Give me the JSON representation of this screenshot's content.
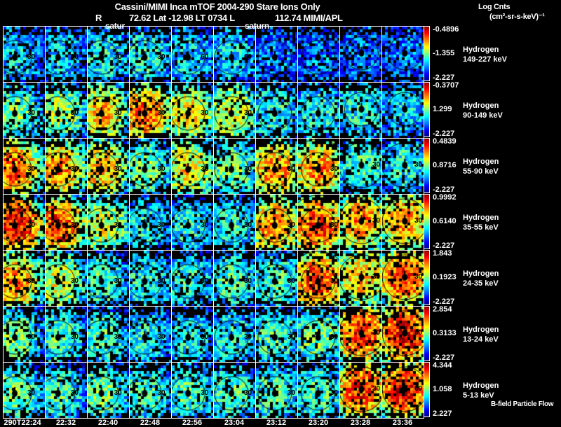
{
  "header": {
    "title": "Cassini/MIMI Inca mTOF  2004-290    Stare    Ions Only",
    "r_label": "R",
    "position": "72.62 Lat -12.98 LT 0734 L",
    "l_value": "112.74  MIMI/APL",
    "saturn_label_1": "satur",
    "saturn_label_2": "saturn"
  },
  "colorbar_title": "Log Cnts",
  "colorbar_units": "(cm²-sr-s-keV)⁻¹",
  "footer_note": "B-field Particle Flow",
  "chart_data": {
    "type": "heatmap",
    "title": "Cassini/MIMI Inca mTOF 2004-290 Stare Ions Only",
    "columns": [
      "290T22:24",
      "22:32",
      "22:40",
      "22:48",
      "22:56",
      "23:04",
      "23:12",
      "23:20",
      "23:28",
      "23:36"
    ],
    "rows": [
      {
        "species": "Hydrogen",
        "energy": "149-227 keV",
        "cmax": "-0.4896",
        "cmid": "-1.355",
        "cmin": "-2.227",
        "level": [
          0.3,
          0.3,
          0.35,
          0.35,
          0.3,
          0.3,
          0.2,
          0.2,
          0.2,
          0.2
        ],
        "rings": [
          "30",
          "30",
          "30",
          "30",
          "60",
          "60",
          "",
          "",
          "",
          ""
        ]
      },
      {
        "species": "Hydrogen",
        "energy": "90-149 keV",
        "cmax": "-0.3707",
        "cmid": "1.299",
        "cmin": "-2.227",
        "level": [
          0.5,
          0.55,
          0.7,
          0.8,
          0.65,
          0.6,
          0.35,
          0.35,
          0.35,
          0.3
        ],
        "rings": [
          "30",
          "30",
          "30",
          "30",
          "30",
          "30",
          "",
          "",
          "",
          ""
        ]
      },
      {
        "species": "Hydrogen",
        "energy": "55-90 keV",
        "cmax": "0.4839",
        "cmid": "0.8716",
        "cmin": "-2.227",
        "level": [
          0.8,
          0.75,
          0.7,
          0.5,
          0.65,
          0.5,
          0.75,
          0.75,
          0.45,
          0.4
        ],
        "rings": [
          "30",
          "30",
          "30",
          "30",
          "30",
          "30",
          "30",
          "30",
          "30",
          "30"
        ]
      },
      {
        "species": "Hydrogen",
        "energy": "35-55 keV",
        "cmax": "0.9992",
        "cmid": "0.6140",
        "cmin": "-2.227",
        "level": [
          0.9,
          0.85,
          0.6,
          0.4,
          0.4,
          0.4,
          0.75,
          0.85,
          0.75,
          0.75
        ],
        "rings": [
          "30",
          "30",
          "30",
          "30",
          "30",
          "30",
          "30",
          "30",
          "30",
          "30"
        ]
      },
      {
        "species": "Hydrogen",
        "energy": "24-35 keV",
        "cmax": "1.843",
        "cmid": "0.1923",
        "cmin": "-2.227",
        "level": [
          0.75,
          0.6,
          0.45,
          0.35,
          0.35,
          0.45,
          0.45,
          0.85,
          0.7,
          0.85
        ],
        "rings": [
          "30",
          "30",
          "30",
          "30",
          "30",
          "30",
          "30",
          "30",
          "30",
          "30"
        ]
      },
      {
        "species": "Hydrogen",
        "energy": "13-24 keV",
        "cmax": "2.854",
        "cmid": "0.3133",
        "cmin": "-2.227",
        "level": [
          0.5,
          0.45,
          0.45,
          0.4,
          0.4,
          0.4,
          0.45,
          0.5,
          0.85,
          0.9
        ],
        "rings": [
          "30",
          "30",
          "30",
          "30",
          "30",
          "30",
          "30",
          "30",
          "30",
          "60"
        ]
      },
      {
        "species": "Hydrogen",
        "energy": "5-13 keV",
        "cmax": "4.344",
        "cmid": "1.058",
        "cmin": "2.227",
        "level": [
          0.5,
          0.45,
          0.5,
          0.45,
          0.45,
          0.45,
          0.45,
          0.45,
          0.85,
          0.9
        ],
        "rings": [
          "30",
          "30",
          "30",
          "30",
          "30",
          "30",
          "30",
          "30",
          "30",
          "60"
        ]
      }
    ],
    "colormap": "jet",
    "colorbar_label": "Log Cnts (cm2-sr-s-keV)-1"
  }
}
